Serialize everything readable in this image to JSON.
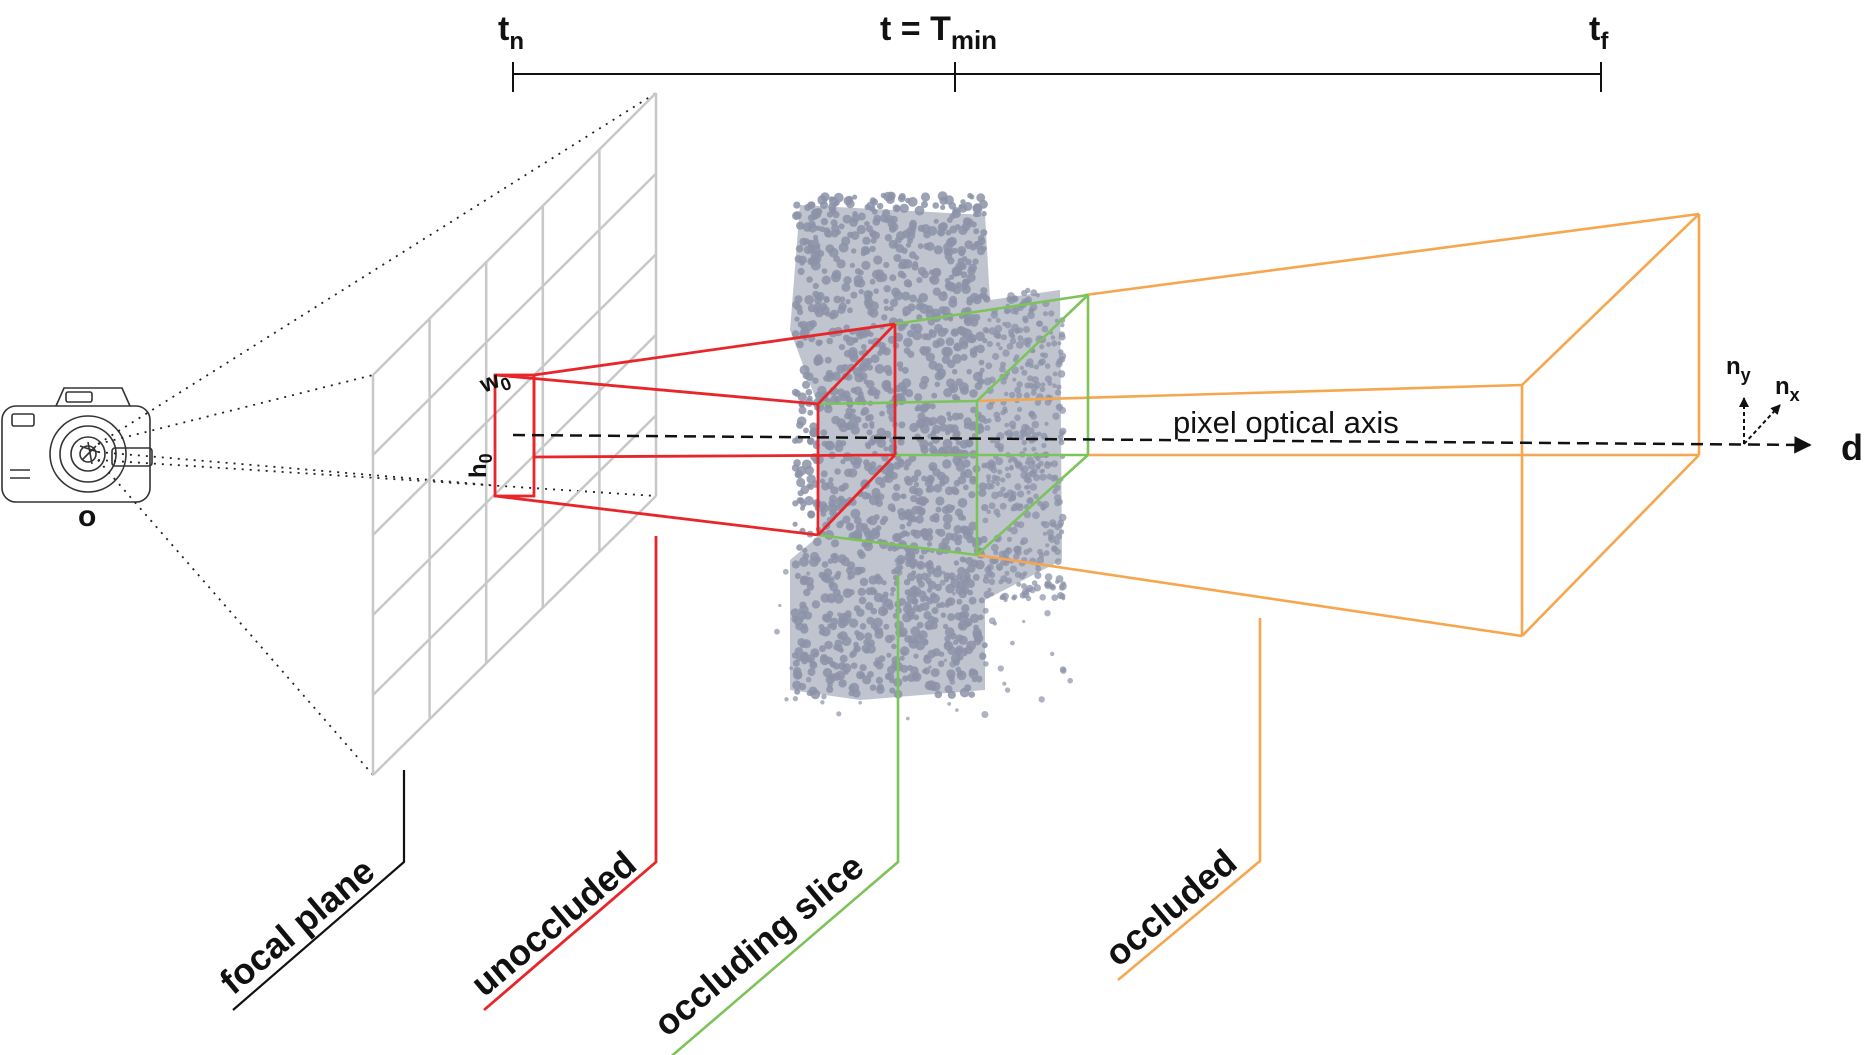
{
  "timeline": {
    "t_near": {
      "main": "t",
      "sub": "n"
    },
    "t_min": {
      "main": "t = T",
      "sub": "min"
    },
    "t_far": {
      "main": "t",
      "sub": "f"
    }
  },
  "camera": {
    "icon": "camera-icon",
    "origin_label": "o"
  },
  "pixel": {
    "w": {
      "main": "w",
      "sub": "0"
    },
    "h": {
      "main": "h",
      "sub": "0"
    }
  },
  "axis": {
    "label": "pixel optical axis",
    "direction": "d",
    "nx": {
      "main": "n",
      "sub": "x"
    },
    "ny": {
      "main": "n",
      "sub": "y"
    }
  },
  "regions": {
    "focal_plane": "focal plane",
    "unoccluded": "unoccluded",
    "occluding_slice": "occluding slice",
    "occluded": "occluded"
  },
  "colors": {
    "unoccluded": "#e8262a",
    "occluding_slice": "#7cc35a",
    "occluded": "#f5a64e",
    "focal_plane": "#c8c8c8",
    "point_cloud": "#8c93a8",
    "text": "#111111"
  }
}
